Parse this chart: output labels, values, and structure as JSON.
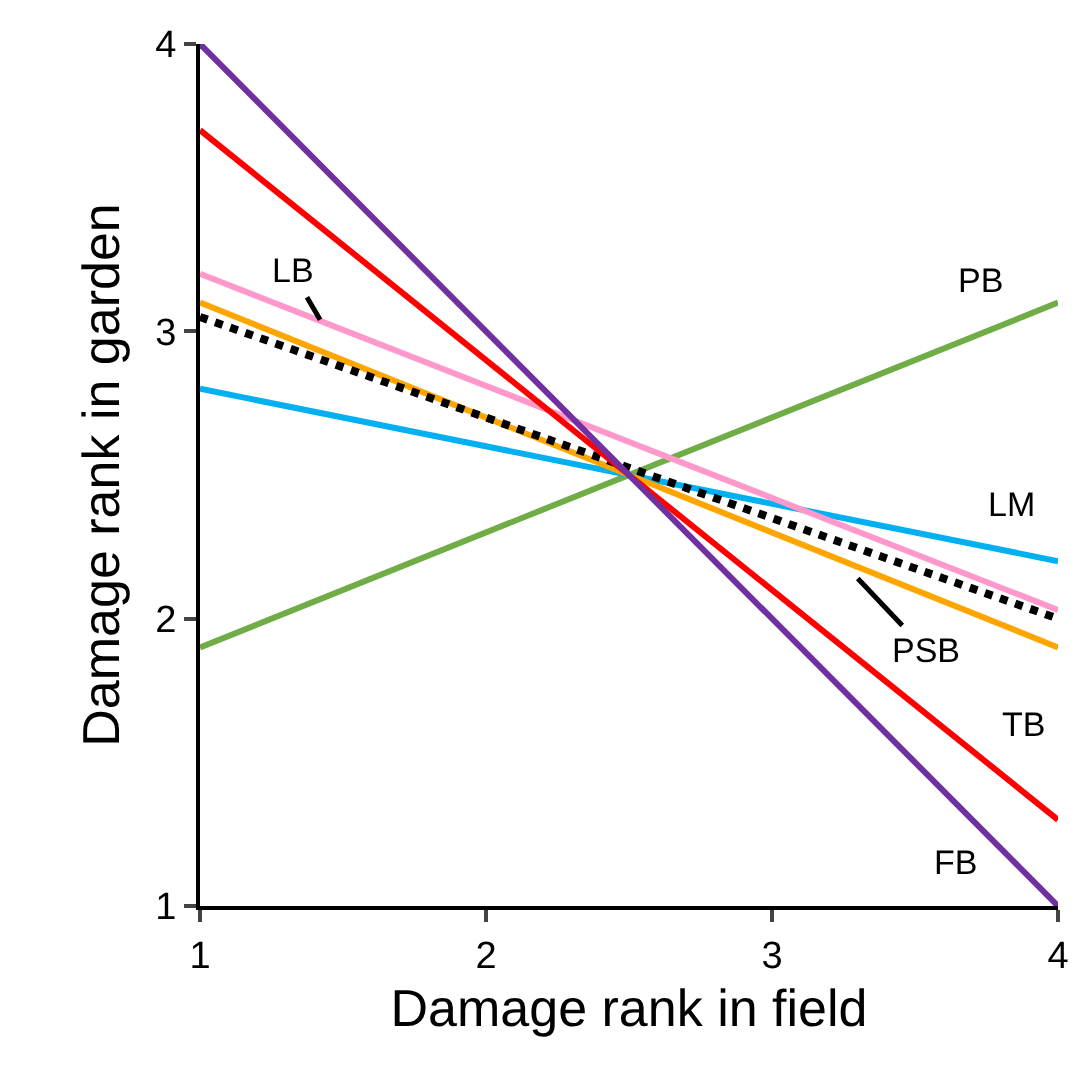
{
  "chart_data": {
    "type": "line",
    "xlabel": "Damage rank in field",
    "ylabel": "Damage rank in garden",
    "x": [
      1,
      4
    ],
    "xlim": [
      1,
      4
    ],
    "ylim": [
      1,
      4
    ],
    "xticks": [
      1,
      2,
      3,
      4
    ],
    "yticks": [
      1,
      2,
      3,
      4
    ],
    "grid": false,
    "marker": "none",
    "series": [
      {
        "color": "#70ad47",
        "values": [
          1.9,
          3.1
        ]
      },
      {
        "color": "#00b0f0",
        "values": [
          2.8,
          2.2
        ]
      },
      {
        "color": "#ff99cc",
        "values": [
          3.2,
          2.03
        ]
      },
      {
        "color": "#ffa500",
        "values": [
          3.1,
          1.9
        ]
      },
      {
        "color": "#000000",
        "values": [
          3.05,
          2.0
        ],
        "line_style": "dotted"
      },
      {
        "color": "#ff0000",
        "values": [
          3.7,
          1.3
        ]
      },
      {
        "color": "#7030a0",
        "values": [
          4.0,
          1.0
        ]
      }
    ],
    "annotations": [
      {
        "text": "LB",
        "x": 1.42,
        "y": 3.04
      },
      {
        "text": "PB",
        "x": 3.7,
        "y": 2.98
      },
      {
        "text": "LM",
        "x": 3.8,
        "y": 2.24
      },
      {
        "text": "PSB",
        "x": 3.3,
        "y": 2.14
      },
      {
        "text": "TB",
        "x": 3.8,
        "y": 1.46
      },
      {
        "text": "FB",
        "x": 3.85,
        "y": 1.15
      }
    ]
  }
}
